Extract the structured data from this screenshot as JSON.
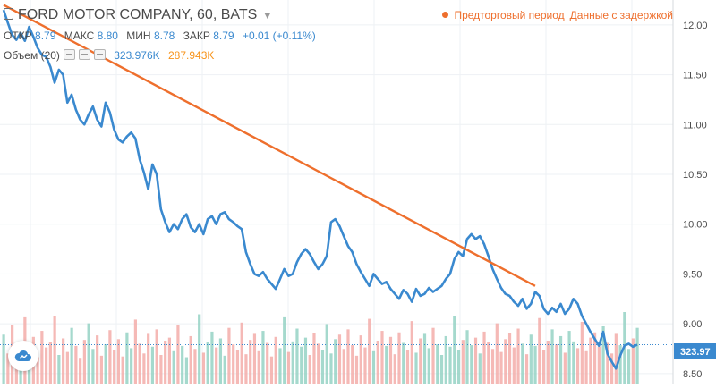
{
  "header": {
    "title": "FORD MOTOR COMPANY, 60, BATS",
    "ohlc": {
      "open_label": "ОТКР",
      "open_value": "8.79",
      "high_label": "МАКС",
      "high_value": "8.80",
      "low_label": "МИН",
      "low_value": "8.78",
      "close_label": "ЗАКР",
      "close_value": "8.79",
      "change": "+0.01 (+0.11%)"
    },
    "volume": {
      "label": "Объем (20)",
      "value_a": "323.976K",
      "value_b": "287.943K"
    },
    "status_left": "Предторговый период",
    "status_right": "Данные с задержкой"
  },
  "colors": {
    "price_line": "#3a89cf",
    "trend_line": "#ee6f2d",
    "volume_up": "#8fcfc0",
    "volume_down": "#f2a7a4",
    "price_tag_bg": "#3a89cf"
  },
  "chart_data": {
    "type": "line",
    "ylim": [
      8.4,
      12.25
    ],
    "yticks": [
      "12.00",
      "11.50",
      "11.00",
      "10.50",
      "10.00",
      "9.50",
      "9.00",
      "8.50"
    ],
    "x": [
      0,
      1,
      2,
      3,
      4,
      5,
      6,
      7,
      8,
      9,
      10,
      11,
      12,
      13,
      14,
      15,
      16,
      17,
      18,
      19,
      20,
      21,
      22,
      23,
      24,
      25,
      26,
      27,
      28,
      29,
      30,
      31,
      32,
      33,
      34,
      35,
      36,
      37,
      38,
      39,
      40,
      41,
      42,
      43,
      44,
      45,
      46,
      47,
      48,
      49,
      50,
      51,
      52,
      53,
      54,
      55,
      56,
      57,
      58,
      59,
      60,
      61,
      62,
      63,
      64,
      65,
      66,
      67,
      68,
      69,
      70,
      71,
      72,
      73,
      74,
      75,
      76,
      77,
      78,
      79,
      80,
      81,
      82,
      83,
      84,
      85,
      86,
      87,
      88,
      89,
      90,
      91,
      92,
      93,
      94,
      95,
      96,
      97,
      98,
      99,
      100,
      101,
      102,
      103,
      104,
      105,
      106,
      107,
      108,
      109,
      110,
      111,
      112,
      113,
      114,
      115,
      116,
      117,
      118,
      119,
      120,
      121,
      122,
      123,
      124,
      125,
      126,
      127,
      128,
      129,
      130,
      131,
      132,
      133,
      134,
      135,
      136,
      137,
      138,
      139,
      140,
      141,
      142,
      143,
      144,
      145,
      146,
      147,
      148,
      149
    ],
    "series": [
      {
        "values": [
          12.15,
          12.02,
          11.9,
          11.85,
          11.92,
          11.84,
          11.98,
          11.88,
          11.77,
          11.7,
          11.68,
          11.58,
          11.42,
          11.55,
          11.5,
          11.22,
          11.3,
          11.15,
          11.05,
          11.0,
          11.1,
          11.18,
          11.05,
          10.98,
          11.22,
          11.12,
          10.95,
          10.85,
          10.82,
          10.88,
          10.92,
          10.86,
          10.65,
          10.52,
          10.35,
          10.6,
          10.5,
          10.15,
          10.02,
          9.92,
          10.0,
          9.95,
          10.05,
          10.1,
          9.97,
          9.92,
          10.0,
          9.9,
          10.05,
          10.08,
          10.0,
          10.1,
          10.12,
          10.05,
          10.02,
          9.98,
          9.95,
          9.72,
          9.6,
          9.5,
          9.48,
          9.52,
          9.45,
          9.4,
          9.35,
          9.45,
          9.55,
          9.48,
          9.5,
          9.62,
          9.7,
          9.75,
          9.7,
          9.62,
          9.55,
          9.6,
          9.68,
          10.02,
          10.05,
          9.98,
          9.88,
          9.78,
          9.72,
          9.6,
          9.52,
          9.45,
          9.38,
          9.5,
          9.45,
          9.4,
          9.42,
          9.35,
          9.3,
          9.25,
          9.34,
          9.3,
          9.22,
          9.35,
          9.28,
          9.3,
          9.36,
          9.32,
          9.35,
          9.38,
          9.45,
          9.5,
          9.65,
          9.72,
          9.68,
          9.85,
          9.9,
          9.85,
          9.88,
          9.8,
          9.68,
          9.55,
          9.45,
          9.36,
          9.3,
          9.28,
          9.22,
          9.18,
          9.25,
          9.15,
          9.2,
          9.32,
          9.28,
          9.15,
          9.1,
          9.16,
          9.12,
          9.2,
          9.1,
          9.15,
          9.25,
          9.2,
          9.08,
          9.0,
          8.92,
          8.85,
          8.78,
          8.92,
          8.7,
          8.62,
          8.55,
          8.68,
          8.78,
          8.8,
          8.77,
          8.79
        ]
      }
    ],
    "trendline": {
      "x": [
        0,
        125
      ],
      "y": [
        12.2,
        9.38
      ]
    },
    "volume": [
      65,
      40,
      78,
      52,
      30,
      88,
      45,
      62,
      35,
      70,
      48,
      55,
      90,
      38,
      60,
      42,
      74,
      50,
      33,
      58,
      80,
      46,
      64,
      37,
      52,
      71,
      44,
      59,
      36,
      68,
      47,
      85,
      53,
      40,
      66,
      49,
      72,
      38,
      57,
      61,
      43,
      78,
      50,
      35,
      63,
      46,
      92,
      41,
      55,
      69,
      48,
      60,
      37,
      74,
      52,
      45,
      81,
      39,
      58,
      66,
      43,
      70,
      54,
      36,
      62,
      47,
      88,
      42,
      56,
      73,
      49,
      61,
      38,
      67,
      53,
      44,
      79,
      40,
      59,
      65,
      46,
      72,
      51,
      37,
      64,
      48,
      86,
      43,
      57,
      70,
      50,
      62,
      39,
      68,
      54,
      45,
      83,
      41,
      60,
      66,
      47,
      74,
      52,
      38,
      63,
      49,
      90,
      44,
      58,
      71,
      51,
      61,
      40,
      69,
      55,
      46,
      80,
      42,
      59,
      67,
      48,
      73,
      53,
      39,
      65,
      50,
      87,
      45,
      57,
      72,
      52,
      63,
      41,
      70,
      56,
      47,
      82,
      43,
      61,
      68,
      49,
      76,
      54,
      40,
      66,
      51,
      95,
      46,
      60,
      74
    ],
    "last_price_tag": "323.97"
  }
}
